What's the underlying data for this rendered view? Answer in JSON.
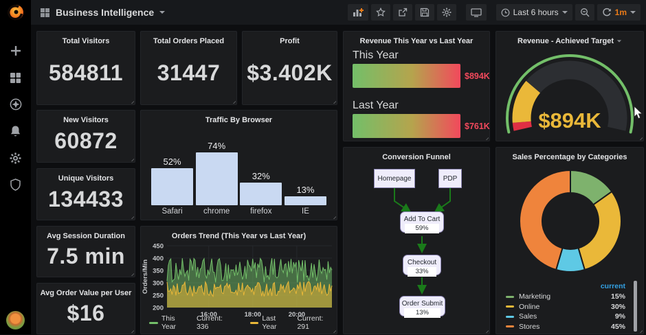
{
  "topnav": {
    "dashboard_title": "Business Intelligence",
    "time_range_label": "Last 6 hours",
    "refresh_interval_label": "1m"
  },
  "sidebar": {
    "icons": [
      "grafana-logo",
      "plus",
      "dashboards",
      "explore",
      "alerting",
      "configuration",
      "server-admin",
      "user-avatar"
    ]
  },
  "stats": [
    {
      "title": "Total Visitors",
      "value": "584811"
    },
    {
      "title": "Total Orders Placed",
      "value": "31447"
    },
    {
      "title": "Profit",
      "value": "$3.402K"
    },
    {
      "title": "New Visitors",
      "value": "60872"
    },
    {
      "title": "Unique Visitors",
      "value": "134433"
    },
    {
      "title": "Avg Session Duration",
      "value": "7.5 min"
    },
    {
      "title": "Avg Order Value per User",
      "value": "$16"
    }
  ],
  "chart_data": [
    {
      "id": "traffic-by-browser",
      "type": "bar",
      "title": "Traffic By Browser",
      "categories": [
        "Safari",
        "chrome",
        "firefox",
        "IE"
      ],
      "values": [
        52,
        74,
        32,
        13
      ],
      "unit": "%",
      "ylim": [
        0,
        100
      ],
      "grid": false,
      "bar_color_key": "bar_blue"
    },
    {
      "id": "orders-trend",
      "type": "line",
      "title": "Orders Trend (This Year vs Last Year)",
      "ylabel": "Orders/Min",
      "ylim": [
        200,
        450
      ],
      "yticks": [
        200,
        250,
        300,
        350,
        400,
        450
      ],
      "xticks": [
        "16:00",
        "18:00",
        "20:00"
      ],
      "grid": true,
      "legend_position": "bottom",
      "series": [
        {
          "name": "This Year",
          "color_key": "green",
          "current": 336,
          "current_label": "Current: 336",
          "approx_range": [
            300,
            400
          ],
          "style": "noisy-area"
        },
        {
          "name": "Last Year",
          "color_key": "yellow",
          "current": 291,
          "current_label": "Current: 291",
          "approx_range": [
            245,
            305
          ],
          "style": "noisy-area"
        }
      ]
    },
    {
      "id": "revenue-compare",
      "type": "bar",
      "title": "Revenue This Year vs Last Year",
      "orientation": "horizontal",
      "categories": [
        "This Year",
        "Last Year"
      ],
      "values": [
        "$894K",
        "$761K"
      ],
      "bar_style": "gradient-green-to-red"
    },
    {
      "id": "conversion-funnel",
      "type": "diagram",
      "title": "Conversion Funnel",
      "nodes": [
        {
          "label": "Homepage"
        },
        {
          "label": "PDP"
        },
        {
          "label": "Add To Cart",
          "value": "59%"
        },
        {
          "label": "Checkout",
          "value": "33%"
        },
        {
          "label": "Order Submit",
          "value": "13%"
        }
      ],
      "edges": [
        [
          "Homepage",
          "Add To Cart"
        ],
        [
          "PDP",
          "Add To Cart"
        ],
        [
          "Add To Cart",
          "Checkout"
        ],
        [
          "Checkout",
          "Order Submit"
        ]
      ]
    },
    {
      "id": "revenue-gauge",
      "type": "gauge",
      "title": "Revenue - Achieved Target",
      "value": "$894K",
      "percent": 26,
      "threshold_segment_percent": 4
    },
    {
      "id": "sales-by-category",
      "type": "pie",
      "title": "Sales Percentage by Categories",
      "legend_header": "current",
      "categories": [
        "Marketing",
        "Online",
        "Sales",
        "Stores"
      ],
      "values": [
        15,
        30,
        9,
        45
      ],
      "unit": "%",
      "color_keys": [
        "donut_green",
        "donut_yellow",
        "donut_blue",
        "donut_orange"
      ]
    }
  ],
  "colors": {
    "text": "#D8D9DA",
    "dim": "#9DA0A5",
    "panel": "#1B1C1E",
    "grid": "#26282C",
    "accent_orange": "#EB7B18",
    "green": "#73BF69",
    "yellow": "#EAB839",
    "red": "#F2495C",
    "gauge_red": "#E02F44",
    "gauge_rest": "#2C2E32",
    "bar_blue": "#C9D9F2",
    "donut_green": "#7EB26D",
    "donut_yellow": "#EAB839",
    "donut_blue": "#5EC9E5",
    "donut_orange": "#EF843C",
    "legend_blue": "#33A2E5",
    "funnel_node": "#EFEDFB",
    "funnel_border": "#8D86B5",
    "funnel_arrow": "#1A7A1A"
  }
}
